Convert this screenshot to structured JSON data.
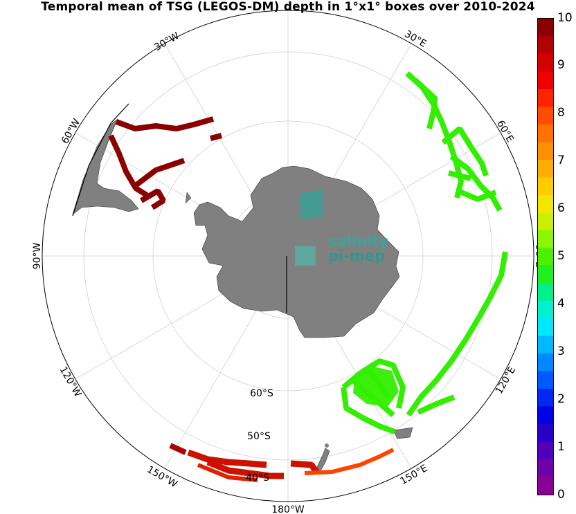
{
  "title": "Temporal mean of TSG (LEGOS-DM) depth in 1°x1° boxes over 2010-2024",
  "colorbar": {
    "ticks": [
      "10",
      "9",
      "8",
      "7",
      "6",
      "5",
      "4",
      "3",
      "2",
      "1",
      "0"
    ],
    "colors": [
      "#8b0000",
      "#b30000",
      "#d40000",
      "#ee0000",
      "#ff2400",
      "#ff4d00",
      "#ff7100",
      "#ff9100",
      "#ffad00",
      "#ffcc00",
      "#f2e600",
      "#c8f000",
      "#8cf500",
      "#4cf000",
      "#1ef01e",
      "#00f08c",
      "#00f0d0",
      "#00e8ff",
      "#00b8ff",
      "#0088ff",
      "#0058ff",
      "#0028f0",
      "#0000e0",
      "#2800c8",
      "#5000b8",
      "#7000a8",
      "#8a0094"
    ]
  },
  "lon_labels": [
    "30°W",
    "30°E",
    "60°W",
    "60°E",
    "90°W",
    "90°E",
    "120°W",
    "120°E",
    "150°W",
    "150°E",
    "180°W"
  ],
  "lat_labels": [
    "60°S",
    "50°S",
    "40°S"
  ],
  "logo": {
    "line1": "salinity",
    "line2": "pi-mep"
  },
  "colors": {
    "land": "#808080",
    "green_track": "#33ee00",
    "dark_red_track": "#8b0000",
    "red_track": "#cc1100",
    "orange_track": "#ff4400"
  },
  "tracks": [
    {
      "name": "drake-passage-track",
      "value": 10
    },
    {
      "name": "indian-ocean-track",
      "value": 5.5
    },
    {
      "name": "south-pacific-australia-track",
      "value": 5.5
    },
    {
      "name": "new-zealand-track",
      "value": 9
    }
  ]
}
